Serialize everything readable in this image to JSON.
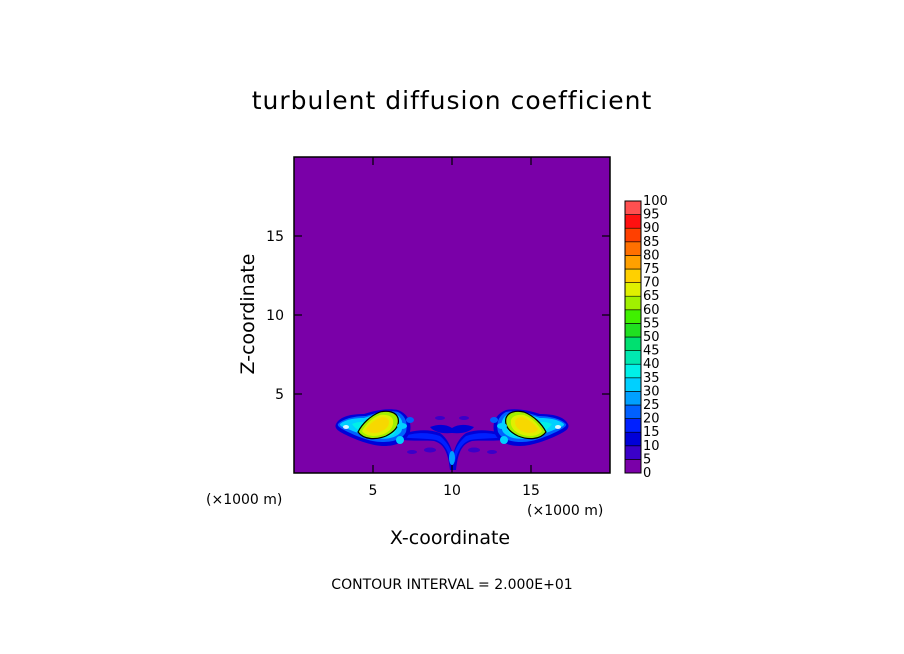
{
  "chart_data": {
    "type": "heatmap",
    "title": "turbulent diffusion coefficient",
    "xlabel": "X-coordinate",
    "ylabel": "Z-coordinate",
    "x_unit_label": "(×1000 m)",
    "y_unit_label": "(×1000 m)",
    "xlim": [
      0,
      20
    ],
    "ylim": [
      0,
      20
    ],
    "x_ticks": [
      5,
      10,
      15
    ],
    "y_ticks": [
      5,
      10,
      15
    ],
    "footer": "CONTOUR INTERVAL = 2.000E+01",
    "colorbar": {
      "levels": [
        0,
        5,
        10,
        15,
        20,
        25,
        30,
        35,
        40,
        45,
        50,
        55,
        60,
        65,
        70,
        75,
        80,
        85,
        90,
        95,
        100
      ],
      "colors": [
        "#7a00a8",
        "#3a00c8",
        "#0000d8",
        "#0020ff",
        "#0060ff",
        "#00a0ff",
        "#00d0ff",
        "#00f0e8",
        "#00e8b0",
        "#00e070",
        "#20e020",
        "#40f000",
        "#a0f000",
        "#e0f000",
        "#ffd000",
        "#ffa000",
        "#ff7000",
        "#ff4000",
        "#ff1010",
        "#ff5050",
        "#f08080"
      ]
    },
    "regions": [
      {
        "label": "left lobe",
        "x_center": 5.3,
        "z_center": 3.0,
        "max_value": 70
      },
      {
        "label": "right lobe",
        "x_center": 14.7,
        "z_center": 3.0,
        "max_value": 70
      },
      {
        "label": "central low region",
        "x_center": 10.0,
        "z_center": 2.0,
        "max_value": 15
      }
    ]
  }
}
